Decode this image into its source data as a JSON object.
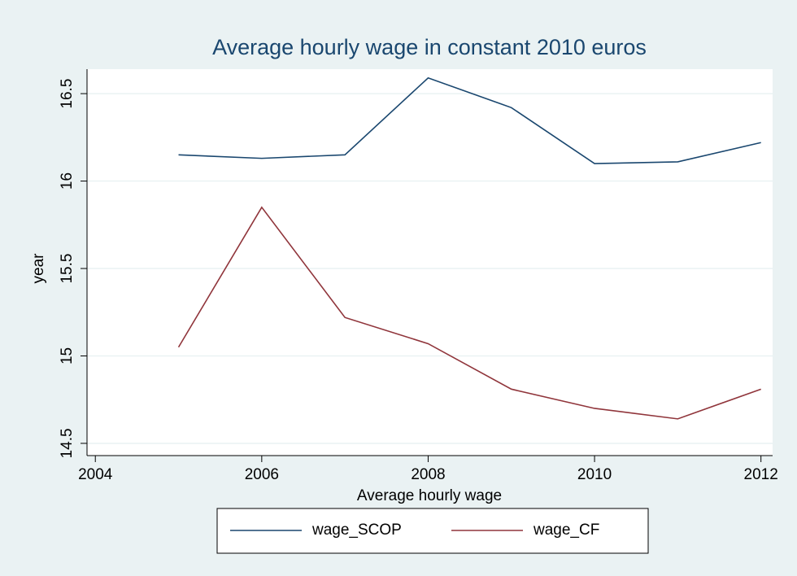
{
  "chart_data": {
    "type": "line",
    "title": "Average hourly wage in constant 2010 euros",
    "x_label": "Average hourly wage",
    "y_label": "year",
    "x": [
      2005,
      2006,
      2007,
      2008,
      2009,
      2010,
      2011,
      2012
    ],
    "series": [
      {
        "name": "wage_SCOP",
        "color": "#1a476f",
        "values": [
          16.15,
          16.13,
          16.15,
          16.59,
          16.42,
          16.1,
          16.11,
          16.22
        ]
      },
      {
        "name": "wage_CF",
        "color": "#90353b",
        "values": [
          15.05,
          15.85,
          15.22,
          15.07,
          14.81,
          14.7,
          14.64,
          14.81
        ]
      }
    ],
    "xlim": [
      2003.9,
      2012.14
    ],
    "ylim": [
      14.43,
      16.64
    ],
    "xticks": [
      2004,
      2006,
      2008,
      2010,
      2012
    ],
    "yticks": [
      14.5,
      15,
      15.5,
      16,
      16.5
    ],
    "grid": true,
    "legend": "bottom"
  }
}
